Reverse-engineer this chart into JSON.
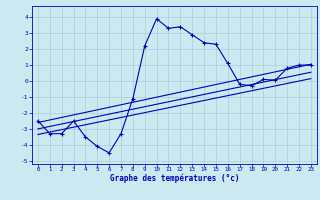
{
  "xlabel": "Graphe des températures (°c)",
  "xlim": [
    -0.5,
    23.5
  ],
  "ylim": [
    -5.2,
    4.7
  ],
  "yticks": [
    -5,
    -4,
    -3,
    -2,
    -1,
    0,
    1,
    2,
    3,
    4
  ],
  "xticks": [
    0,
    1,
    2,
    3,
    4,
    5,
    6,
    7,
    8,
    9,
    10,
    11,
    12,
    13,
    14,
    15,
    16,
    17,
    18,
    19,
    20,
    21,
    22,
    23
  ],
  "background_color": "#cce8f0",
  "grid_color": "#aaccd8",
  "line_color": "#0000bb",
  "main_x": [
    0,
    1,
    2,
    3,
    4,
    5,
    6,
    7,
    8,
    9,
    10,
    11,
    12,
    13,
    14,
    15,
    16,
    17,
    18,
    19,
    20,
    21,
    22,
    23
  ],
  "main_y": [
    -2.5,
    -3.3,
    -3.3,
    -2.5,
    -3.5,
    -4.1,
    -4.5,
    -3.3,
    -1.1,
    2.2,
    3.9,
    3.3,
    3.4,
    2.9,
    2.4,
    2.3,
    1.1,
    -0.2,
    -0.3,
    0.1,
    0.05,
    0.8,
    1.0,
    1.0
  ],
  "trend1_x": [
    0,
    23
  ],
  "trend1_y": [
    -2.6,
    1.05
  ],
  "trend2_x": [
    0,
    23
  ],
  "trend2_y": [
    -3.0,
    0.55
  ],
  "trend3_x": [
    0,
    23
  ],
  "trend3_y": [
    -3.35,
    0.15
  ]
}
